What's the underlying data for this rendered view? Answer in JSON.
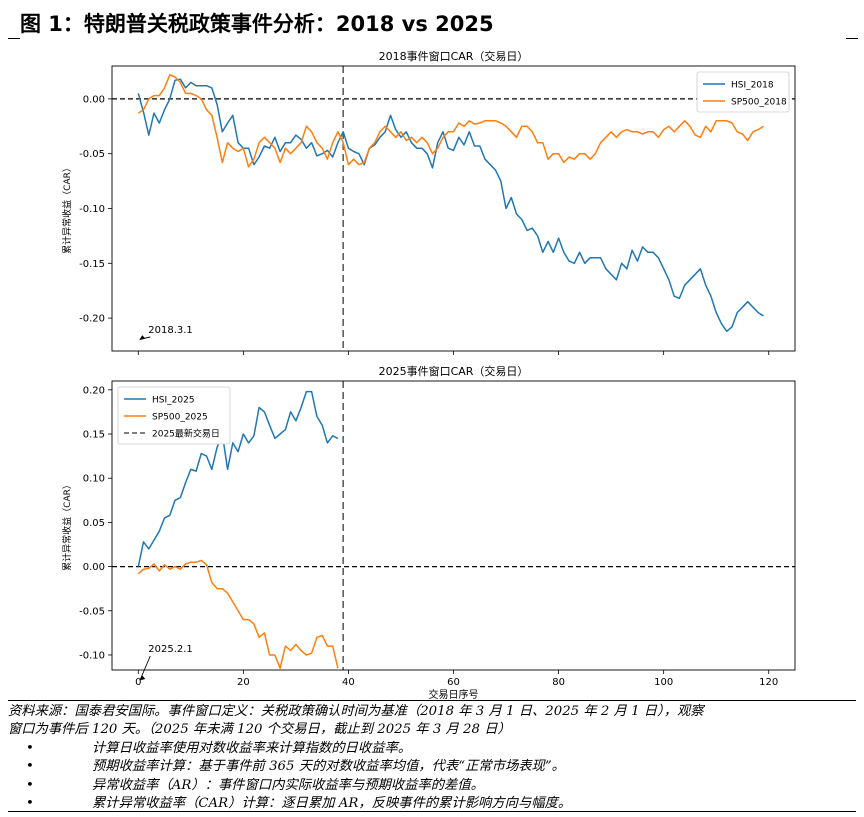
{
  "figure_title": "图 1：特朗普关税政策事件分析：2018 vs 2025",
  "colors": {
    "hsi": "#1f77b4",
    "sp500": "#ff7f0e",
    "ref_line": "#000000",
    "vline": "#555555"
  },
  "chart_data": [
    {
      "type": "line",
      "title": "2018事件窗口CAR（交易日）",
      "xlabel": "",
      "ylabel": "累计异常收益（CAR）",
      "xlim": [
        -5,
        125
      ],
      "ylim": [
        -0.23,
        0.03
      ],
      "yticks": [
        0.0,
        -0.05,
        -0.1,
        -0.15,
        -0.2
      ],
      "ytick_labels": [
        "0.00",
        "-0.05",
        "-0.10",
        "-0.15",
        "-0.20"
      ],
      "xticks": [
        0,
        20,
        40,
        60,
        80,
        100,
        120
      ],
      "show_xtick_labels": false,
      "hline": 0,
      "vline": 39,
      "legend_position": "upper right",
      "annotation": {
        "text": "2018.3.1",
        "x": 0,
        "y": -0.221
      },
      "series": [
        {
          "name": "HSI_2018",
          "color": "#1f77b4",
          "x": [
            0,
            1,
            2,
            3,
            4,
            5,
            6,
            7,
            8,
            9,
            10,
            11,
            12,
            13,
            14,
            15,
            16,
            17,
            18,
            19,
            20,
            21,
            22,
            23,
            24,
            25,
            26,
            27,
            28,
            29,
            30,
            31,
            32,
            33,
            34,
            35,
            36,
            37,
            38,
            39,
            40,
            41,
            42,
            43,
            44,
            45,
            46,
            47,
            48,
            49,
            50,
            51,
            52,
            53,
            54,
            55,
            56,
            57,
            58,
            59,
            60,
            61,
            62,
            63,
            64,
            65,
            66,
            67,
            68,
            69,
            70,
            71,
            72,
            73,
            74,
            75,
            76,
            77,
            78,
            79,
            80,
            81,
            82,
            83,
            84,
            85,
            86,
            87,
            88,
            89,
            90,
            91,
            92,
            93,
            94,
            95,
            96,
            97,
            98,
            99,
            100,
            101,
            102,
            103,
            104,
            105,
            106,
            107,
            108,
            109,
            110,
            111,
            112,
            113,
            114,
            115,
            116,
            117,
            118,
            119
          ],
          "y": [
            0.005,
            -0.012,
            -0.033,
            -0.013,
            -0.022,
            -0.01,
            0.0,
            0.017,
            0.018,
            0.01,
            0.015,
            0.012,
            0.012,
            0.012,
            0.01,
            -0.005,
            -0.03,
            -0.022,
            -0.015,
            -0.04,
            -0.045,
            -0.045,
            -0.06,
            -0.053,
            -0.043,
            -0.045,
            -0.035,
            -0.048,
            -0.04,
            -0.04,
            -0.033,
            -0.037,
            -0.045,
            -0.04,
            -0.052,
            -0.05,
            -0.047,
            -0.053,
            -0.04,
            -0.03,
            -0.045,
            -0.048,
            -0.05,
            -0.06,
            -0.045,
            -0.042,
            -0.035,
            -0.03,
            -0.015,
            -0.028,
            -0.035,
            -0.03,
            -0.04,
            -0.045,
            -0.045,
            -0.05,
            -0.063,
            -0.04,
            -0.03,
            -0.045,
            -0.047,
            -0.035,
            -0.042,
            -0.03,
            -0.043,
            -0.043,
            -0.055,
            -0.06,
            -0.065,
            -0.075,
            -0.1,
            -0.09,
            -0.105,
            -0.11,
            -0.12,
            -0.118,
            -0.125,
            -0.14,
            -0.13,
            -0.14,
            -0.127,
            -0.14,
            -0.148,
            -0.15,
            -0.14,
            -0.15,
            -0.145,
            -0.145,
            -0.145,
            -0.155,
            -0.16,
            -0.165,
            -0.15,
            -0.155,
            -0.138,
            -0.148,
            -0.135,
            -0.14,
            -0.14,
            -0.145,
            -0.155,
            -0.165,
            -0.18,
            -0.182,
            -0.17,
            -0.165,
            -0.16,
            -0.155,
            -0.17,
            -0.18,
            -0.195,
            -0.205,
            -0.212,
            -0.208,
            -0.195,
            -0.19,
            -0.185,
            -0.19,
            -0.195,
            -0.198
          ]
        },
        {
          "name": "SP500_2018",
          "color": "#ff7f0e",
          "x": [
            0,
            1,
            2,
            3,
            4,
            5,
            6,
            7,
            8,
            9,
            10,
            11,
            12,
            13,
            14,
            15,
            16,
            17,
            18,
            19,
            20,
            21,
            22,
            23,
            24,
            25,
            26,
            27,
            28,
            29,
            30,
            31,
            32,
            33,
            34,
            35,
            36,
            37,
            38,
            39,
            40,
            41,
            42,
            43,
            44,
            45,
            46,
            47,
            48,
            49,
            50,
            51,
            52,
            53,
            54,
            55,
            56,
            57,
            58,
            59,
            60,
            61,
            62,
            63,
            64,
            65,
            66,
            67,
            68,
            69,
            70,
            71,
            72,
            73,
            74,
            75,
            76,
            77,
            78,
            79,
            80,
            81,
            82,
            83,
            84,
            85,
            86,
            87,
            88,
            89,
            90,
            91,
            92,
            93,
            94,
            95,
            96,
            97,
            98,
            99,
            100,
            101,
            102,
            103,
            104,
            105,
            106,
            107,
            108,
            109,
            110,
            111,
            112,
            113,
            114,
            115,
            116,
            117,
            118,
            119
          ],
          "y": [
            -0.013,
            -0.01,
            0.0,
            0.003,
            0.003,
            0.01,
            0.022,
            0.02,
            0.015,
            0.005,
            0.005,
            0.003,
            0.0,
            -0.01,
            -0.015,
            -0.035,
            -0.058,
            -0.04,
            -0.045,
            -0.048,
            -0.045,
            -0.062,
            -0.055,
            -0.04,
            -0.035,
            -0.04,
            -0.045,
            -0.058,
            -0.045,
            -0.05,
            -0.045,
            -0.04,
            -0.025,
            -0.03,
            -0.04,
            -0.045,
            -0.055,
            -0.04,
            -0.03,
            -0.04,
            -0.06,
            -0.055,
            -0.06,
            -0.058,
            -0.045,
            -0.04,
            -0.03,
            -0.025,
            -0.03,
            -0.035,
            -0.03,
            -0.038,
            -0.035,
            -0.04,
            -0.035,
            -0.04,
            -0.05,
            -0.045,
            -0.035,
            -0.03,
            -0.03,
            -0.022,
            -0.025,
            -0.02,
            -0.023,
            -0.022,
            -0.02,
            -0.02,
            -0.02,
            -0.022,
            -0.025,
            -0.03,
            -0.035,
            -0.025,
            -0.025,
            -0.03,
            -0.04,
            -0.04,
            -0.055,
            -0.05,
            -0.05,
            -0.058,
            -0.053,
            -0.055,
            -0.05,
            -0.05,
            -0.055,
            -0.05,
            -0.04,
            -0.035,
            -0.03,
            -0.035,
            -0.03,
            -0.028,
            -0.03,
            -0.03,
            -0.032,
            -0.03,
            -0.03,
            -0.035,
            -0.028,
            -0.025,
            -0.03,
            -0.025,
            -0.02,
            -0.025,
            -0.033,
            -0.035,
            -0.025,
            -0.03,
            -0.02,
            -0.02,
            -0.02,
            -0.022,
            -0.03,
            -0.032,
            -0.038,
            -0.03,
            -0.028,
            -0.025
          ]
        }
      ]
    },
    {
      "type": "line",
      "title": "2025事件窗口CAR（交易日）",
      "xlabel": "交易日序号",
      "ylabel": "累计异常收益（CAR）",
      "xlim": [
        -5,
        125
      ],
      "ylim": [
        -0.117,
        0.21
      ],
      "yticks": [
        0.2,
        0.15,
        0.1,
        0.05,
        0.0,
        -0.05,
        -0.1
      ],
      "ytick_labels": [
        "0.20",
        "0.15",
        "0.10",
        "0.05",
        "0.00",
        "-0.05",
        "-0.10"
      ],
      "xticks": [
        0,
        20,
        40,
        60,
        80,
        100,
        120
      ],
      "xtick_labels": [
        "0",
        "20",
        "40",
        "60",
        "80",
        "100",
        "120"
      ],
      "show_xtick_labels": true,
      "hline": 0,
      "vline": 39,
      "legend_position": "upper left",
      "annotation": {
        "text": "2025.2.1",
        "x": 0,
        "y": -0.13
      },
      "series": [
        {
          "name": "HSI_2025",
          "color": "#1f77b4",
          "x": [
            0,
            1,
            2,
            3,
            4,
            5,
            6,
            7,
            8,
            9,
            10,
            11,
            12,
            13,
            14,
            15,
            16,
            17,
            18,
            19,
            20,
            21,
            22,
            23,
            24,
            25,
            26,
            27,
            28,
            29,
            30,
            31,
            32,
            33,
            34,
            35,
            36,
            37,
            38
          ],
          "y": [
            0.0,
            0.028,
            0.02,
            0.03,
            0.04,
            0.055,
            0.058,
            0.075,
            0.078,
            0.095,
            0.11,
            0.108,
            0.128,
            0.125,
            0.11,
            0.135,
            0.15,
            0.11,
            0.14,
            0.13,
            0.15,
            0.14,
            0.148,
            0.18,
            0.175,
            0.16,
            0.145,
            0.15,
            0.155,
            0.175,
            0.165,
            0.18,
            0.198,
            0.198,
            0.17,
            0.16,
            0.14,
            0.148,
            0.145
          ]
        },
        {
          "name": "SP500_2025",
          "color": "#ff7f0e",
          "x": [
            0,
            1,
            2,
            3,
            4,
            5,
            6,
            7,
            8,
            9,
            10,
            11,
            12,
            13,
            14,
            15,
            16,
            17,
            18,
            19,
            20,
            21,
            22,
            23,
            24,
            25,
            26,
            27,
            28,
            29,
            30,
            31,
            32,
            33,
            34,
            35,
            36,
            37,
            38
          ],
          "y": [
            -0.008,
            -0.003,
            -0.002,
            0.003,
            -0.005,
            0.002,
            -0.003,
            0.0,
            -0.003,
            0.003,
            0.005,
            0.005,
            0.007,
            0.002,
            -0.018,
            -0.025,
            -0.025,
            -0.03,
            -0.04,
            -0.05,
            -0.06,
            -0.06,
            -0.065,
            -0.08,
            -0.075,
            -0.1,
            -0.1,
            -0.115,
            -0.09,
            -0.095,
            -0.088,
            -0.095,
            -0.1,
            -0.098,
            -0.08,
            -0.078,
            -0.09,
            -0.09,
            -0.115
          ]
        }
      ],
      "extra_legend": {
        "label": "2025最新交易日",
        "style": "dashed",
        "color": "#555555"
      }
    }
  ],
  "notes": {
    "source": "资料来源：国泰君安国际。事件窗口定义：关税政策确认时间为基准（2018 年 3 月 1 日、2025 年 2 月 1 日），观察",
    "source_cont": "窗口为事件后 120 天。（2025 年未满 120 个交易日，截止到 2025 年 3 月 28 日）",
    "bullets": [
      "计算日收益率使用对数收益率来计算指数的日收益率。",
      "预期收益率计算：基于事件前 365 天的对数收益率均值，代表“正常市场表现”。",
      "异常收益率（AR）：事件窗口内实际收益率与预期收益率的差值。",
      "累计异常收益率（CAR）计算：逐日累加 AR，反映事件的累计影响方向与幅度。"
    ],
    "bullet_symbol": "•"
  }
}
